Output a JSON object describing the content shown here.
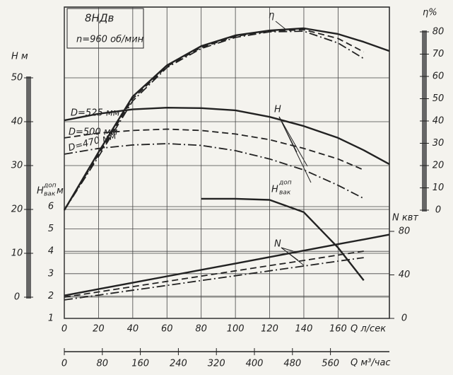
{
  "chart_data": {
    "type": "line",
    "title": "8НДв",
    "subtitle": "n=960 об/мин",
    "x_label": "Q л/сек",
    "x2_label": "Q м³/час",
    "y_label": "Н м",
    "y2_label": "η%",
    "n_label": "N квт",
    "hvak_label": {
      "main": "H",
      "sup": "доп",
      "sub": "вак",
      "unit": "м"
    },
    "annotations": {
      "eta": "η",
      "h": "H",
      "n": "N",
      "hvak": "H",
      "hvak_sup": "доп",
      "hvak_sub": "вак"
    },
    "x": [
      0,
      20,
      40,
      60,
      80,
      100,
      120,
      140,
      160,
      175,
      190
    ],
    "xlim": [
      0,
      190
    ],
    "xticks": [
      0,
      20,
      40,
      60,
      80,
      100,
      120,
      140,
      160
    ],
    "x2lim": [
      0,
      684
    ],
    "x2ticks": [
      0,
      80,
      160,
      240,
      320,
      400,
      480,
      560
    ],
    "ylim": [
      0,
      50
    ],
    "yticks": [
      0,
      10,
      20,
      30,
      40,
      50
    ],
    "y2lim": [
      0,
      80
    ],
    "y2ticks": [
      0,
      10,
      20,
      30,
      40,
      50,
      60,
      70,
      80
    ],
    "nlim": [
      0,
      80
    ],
    "nticks": [
      0,
      40,
      80
    ],
    "hvaklim": [
      1,
      6
    ],
    "hvakticks": [
      1,
      2,
      3,
      4,
      5,
      6
    ],
    "grid": true,
    "series": [
      {
        "name": "D=525 мм",
        "axis": "y",
        "style": "solid",
        "color": "#222222",
        "values": [
          40.3,
          41.8,
          42.8,
          43.2,
          43.1,
          42.6,
          41.1,
          39.0,
          36.3,
          33.5,
          30.3
        ]
      },
      {
        "name": "D=500 мм",
        "axis": "y",
        "style": "dashed",
        "color": "#222222",
        "values": [
          36.3,
          37.4,
          38.0,
          38.3,
          38.0,
          37.2,
          35.9,
          33.9,
          31.5,
          29.0,
          null
        ]
      },
      {
        "name": "D=470 мм",
        "axis": "y",
        "style": "dashdot",
        "color": "#222222",
        "values": [
          32.6,
          33.9,
          34.7,
          35.0,
          34.6,
          33.4,
          31.5,
          29.0,
          25.5,
          22.5,
          null
        ]
      },
      {
        "axis": "y2",
        "style": "solid",
        "color": "#222222",
        "values": [
          0,
          26,
          51,
          65,
          73.6,
          78.4,
          80.6,
          81.6,
          79,
          75.5,
          71.4
        ]
      },
      {
        "axis": "y2",
        "style": "dashed",
        "color": "#222222",
        "values": [
          0,
          25,
          50,
          64.5,
          73,
          78,
          80.3,
          81,
          77,
          71,
          null
        ]
      },
      {
        "axis": "y2",
        "style": "dashdot",
        "color": "#222222",
        "values": [
          0,
          24,
          49,
          64,
          72.5,
          77.5,
          80,
          80.3,
          75,
          68,
          null
        ]
      },
      {
        "axis": "hvak",
        "style": "solid",
        "color": "#222222",
        "values": [
          null,
          null,
          null,
          null,
          6.35,
          6.35,
          6.3,
          5.75,
          4.16,
          2.7,
          null
        ]
      },
      {
        "axis": "n",
        "style": "solid",
        "color": "#222222",
        "values": [
          21,
          26.9,
          32.8,
          38.7,
          44.6,
          50.5,
          56.4,
          62.3,
          68.2,
          72.6,
          77
        ]
      },
      {
        "axis": "n",
        "style": "dashed",
        "color": "#222222",
        "values": [
          19.5,
          24.3,
          29.2,
          34,
          38.8,
          43.7,
          48.5,
          53.3,
          58.2,
          61.8,
          null
        ]
      },
      {
        "axis": "n",
        "style": "dashdot",
        "color": "#222222",
        "values": [
          17,
          21.4,
          25.9,
          30.3,
          34.8,
          39.2,
          43.7,
          48.1,
          52.6,
          55.9,
          null
        ]
      }
    ]
  }
}
